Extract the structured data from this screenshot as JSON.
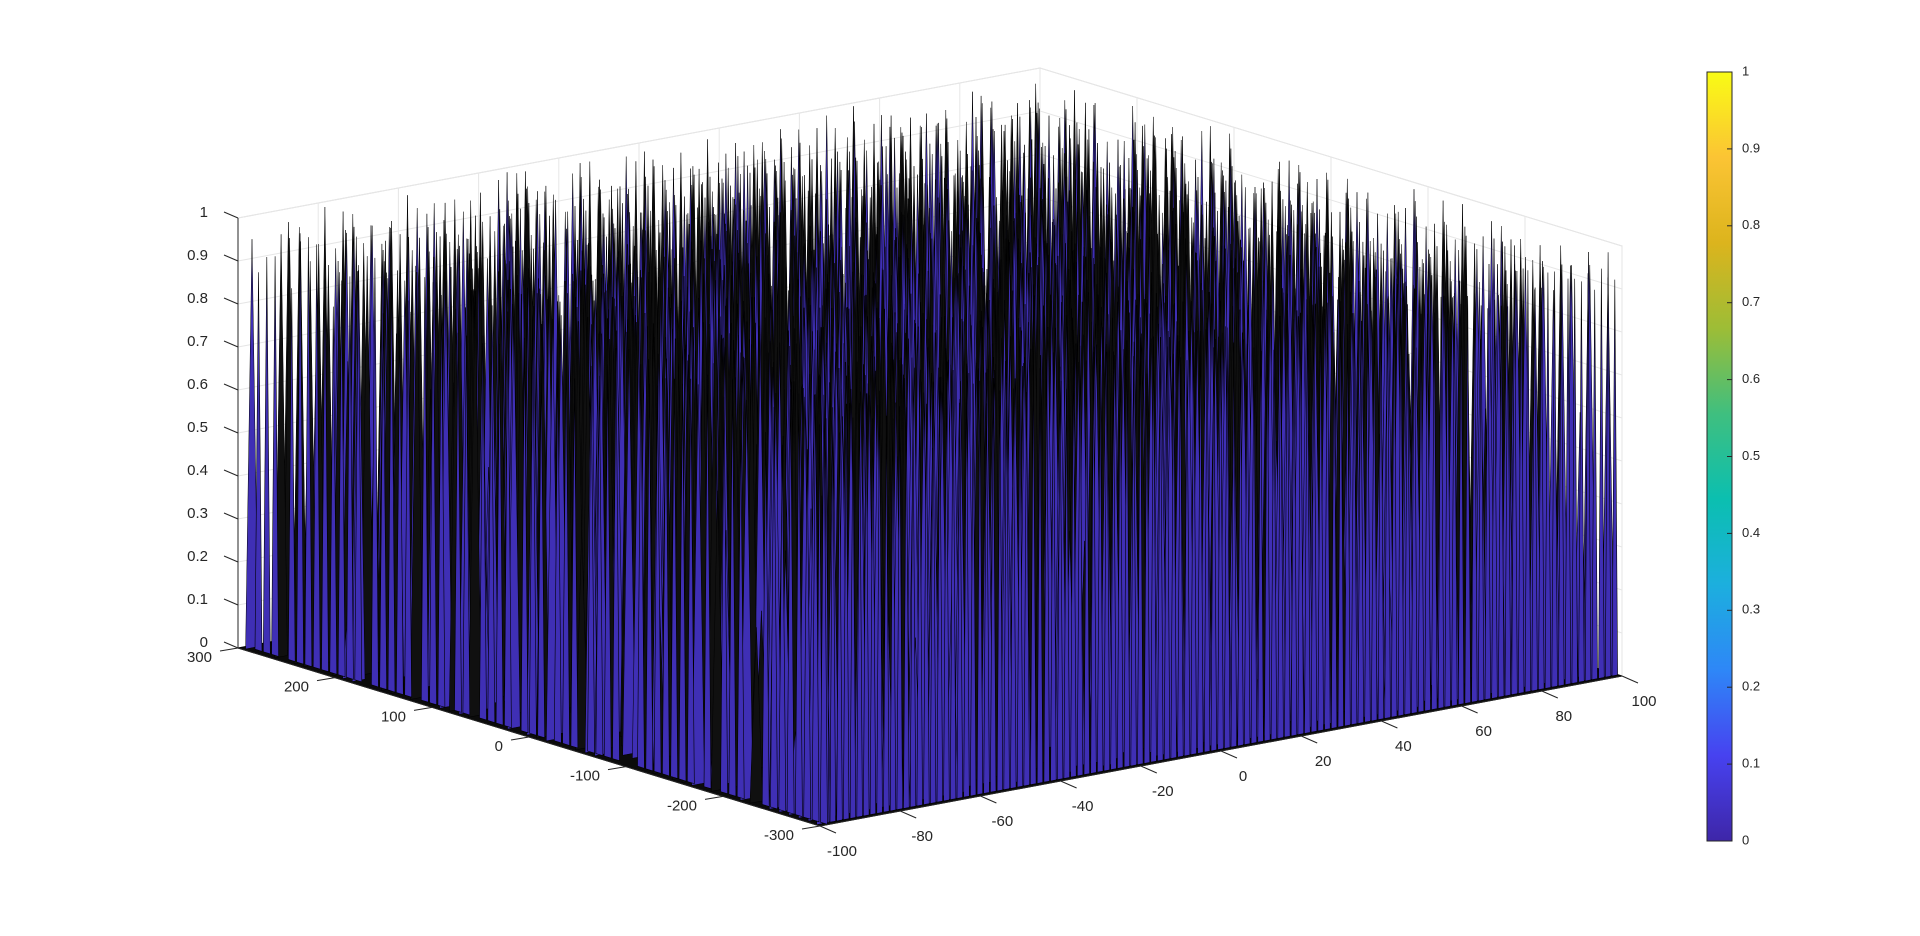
{
  "chart_data": {
    "type": "surface",
    "title": "",
    "xlabel": "",
    "ylabel": "",
    "zlabel": "",
    "colormap": "parula",
    "x_range": [
      -100,
      100
    ],
    "y_range": [
      -300,
      300
    ],
    "z_range": [
      0,
      1
    ],
    "x_ticks": [
      "-100",
      "-80",
      "-60",
      "-40",
      "-20",
      "0",
      "20",
      "40",
      "60",
      "80",
      "100"
    ],
    "y_ticks": [
      "-300",
      "-200",
      "-100",
      "0",
      "100",
      "200",
      "300"
    ],
    "z_ticks": [
      "0",
      "0.1",
      "0.2",
      "0.3",
      "0.4",
      "0.5",
      "0.6",
      "0.7",
      "0.8",
      "0.9",
      "1"
    ],
    "colorbar_ticks": [
      "0",
      "0.1",
      "0.2",
      "0.3",
      "0.4",
      "0.5",
      "0.6",
      "0.7",
      "0.8",
      "0.9",
      "1"
    ],
    "colorbar_range": [
      0,
      1
    ],
    "grid": true,
    "colorbar_position": "right",
    "colors": {
      "surface_face": "#3f2fb5",
      "surface_edge": "#000000",
      "colorbar_stops": [
        "#3e26a8",
        "#4742f0",
        "#2e87f7",
        "#1cafde",
        "#0bbfb0",
        "#3fbf7f",
        "#9dbd36",
        "#dcb41d",
        "#fbc434",
        "#f9fb15"
      ]
    }
  }
}
